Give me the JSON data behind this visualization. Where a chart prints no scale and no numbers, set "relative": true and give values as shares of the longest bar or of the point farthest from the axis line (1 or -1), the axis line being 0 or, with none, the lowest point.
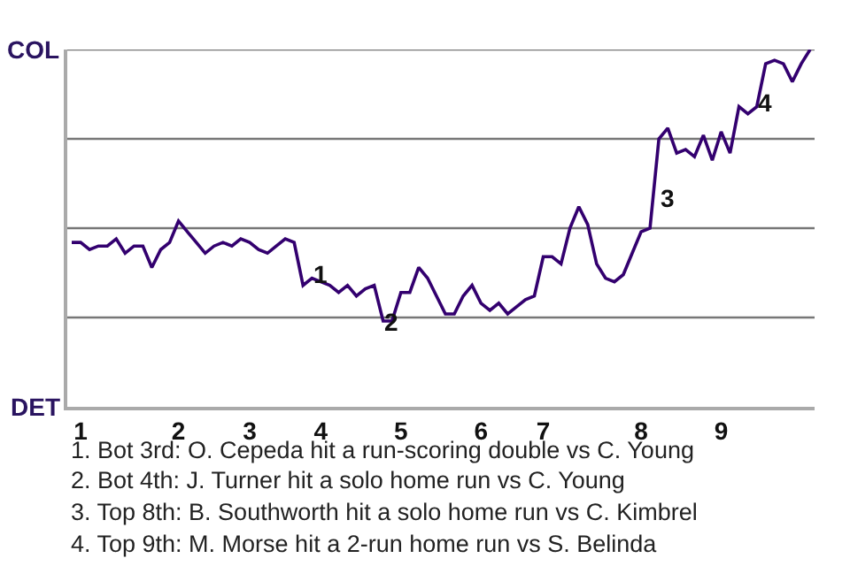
{
  "chart_data": {
    "type": "line",
    "relative": true,
    "categories": [
      null,
      "1",
      null,
      null,
      null,
      null,
      null,
      null,
      null,
      null,
      null,
      null,
      "2",
      null,
      null,
      null,
      null,
      null,
      null,
      null,
      "3",
      null,
      null,
      null,
      null,
      null,
      null,
      null,
      "4",
      null,
      null,
      null,
      null,
      null,
      null,
      null,
      null,
      "5",
      null,
      null,
      null,
      null,
      null,
      null,
      null,
      null,
      "6",
      null,
      null,
      null,
      null,
      null,
      null,
      "7",
      null,
      null,
      null,
      null,
      null,
      null,
      null,
      null,
      null,
      null,
      "8",
      null,
      null,
      null,
      null,
      null,
      null,
      null,
      null,
      "9",
      null,
      null,
      null,
      null,
      null,
      null,
      null,
      null,
      null,
      null
    ],
    "series": [
      {
        "color": "#33006f",
        "values": [
          0.46,
          0.46,
          0.44,
          0.45,
          0.45,
          0.47,
          0.43,
          0.45,
          0.45,
          0.39,
          0.44,
          0.46,
          0.52,
          0.49,
          0.46,
          0.43,
          0.45,
          0.46,
          0.45,
          0.47,
          0.46,
          0.44,
          0.43,
          0.45,
          0.47,
          0.46,
          0.34,
          0.36,
          0.35,
          0.34,
          0.32,
          0.34,
          0.31,
          0.33,
          0.34,
          0.24,
          0.24,
          0.32,
          0.32,
          0.39,
          0.36,
          0.31,
          0.26,
          0.26,
          0.31,
          0.34,
          0.29,
          0.27,
          0.29,
          0.26,
          0.28,
          0.3,
          0.31,
          0.42,
          0.42,
          0.4,
          0.5,
          0.56,
          0.51,
          0.4,
          0.36,
          0.35,
          0.37,
          0.43,
          0.49,
          0.5,
          0.75,
          0.78,
          0.71,
          0.72,
          0.7,
          0.76,
          0.69,
          0.77,
          0.71,
          0.84,
          0.82,
          0.84,
          0.96,
          0.97,
          0.96,
          0.91,
          0.96,
          1.0
        ]
      }
    ],
    "ref_lines": [
      {
        "axis": "y",
        "value": 0.25,
        "color": "#777777"
      },
      {
        "axis": "y",
        "value": 0.5,
        "color": "#777777"
      },
      {
        "axis": "y",
        "value": 0.75,
        "color": "#777777"
      },
      {
        "axis": "y",
        "value": 1,
        "color": "#777777"
      }
    ],
    "grid": false,
    "marker": "none",
    "line_style": "solid",
    "annotations": [
      "COL",
      "DET",
      "1",
      "2",
      "3",
      "4",
      "1. Bot 3rd: O. Cepeda hit a run-scoring double vs C. Young",
      "2. Bot 4th: J. Turner hit a solo home run vs C. Young",
      "3. Top 8th: B. Southworth hit a solo home run vs C. Kimbrel",
      "4. Top 9th: M. Morse hit a 2-run home run vs S. Belinda"
    ]
  }
}
